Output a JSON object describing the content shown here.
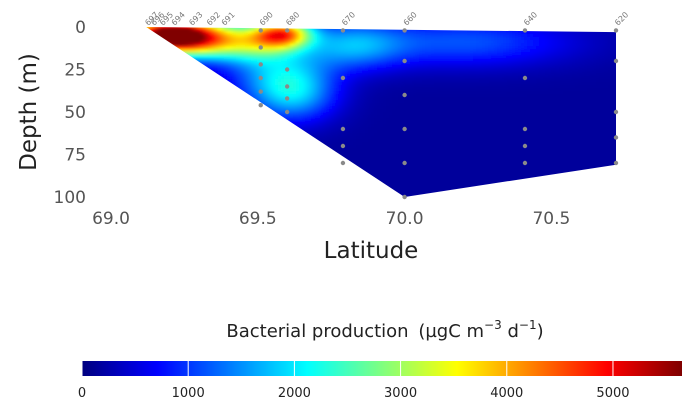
{
  "chart_data": {
    "type": "heatmap",
    "xlabel": "Latitude",
    "ylabel": "Depth (m)",
    "xlim": [
      69.0,
      70.72
    ],
    "ylim": [
      100,
      0
    ],
    "x_ticks": [
      "69.0",
      "69.5",
      "70.0",
      "70.5"
    ],
    "y_ticks": [
      "0",
      "25",
      "50",
      "75",
      "100"
    ],
    "colorbar": {
      "title": "Bacterial production",
      "unit_prefix": "(µgC m",
      "unit_exp1": "−3",
      "unit_mid": " d",
      "unit_exp2": "−1",
      "unit_suffix": ")",
      "range": [
        0,
        5650
      ],
      "ticks": [
        "0",
        "1000",
        "2000",
        "3000",
        "4000",
        "5000"
      ],
      "colormap": "jet"
    },
    "stations": [
      {
        "label": "697",
        "lat": 69.12
      },
      {
        "label": "696",
        "lat": 69.14
      },
      {
        "label": "695",
        "lat": 69.17
      },
      {
        "label": "694",
        "lat": 69.21
      },
      {
        "label": "693",
        "lat": 69.27
      },
      {
        "label": "692",
        "lat": 69.33
      },
      {
        "label": "691",
        "lat": 69.38
      },
      {
        "label": "690",
        "lat": 69.51
      },
      {
        "label": "680",
        "lat": 69.6
      },
      {
        "label": "670",
        "lat": 69.79
      },
      {
        "label": "660",
        "lat": 70.0
      },
      {
        "label": "640",
        "lat": 70.41
      },
      {
        "label": "620",
        "lat": 70.72
      }
    ],
    "sample_points": [
      {
        "lat": 69.51,
        "depth": 2
      },
      {
        "lat": 69.51,
        "depth": 12
      },
      {
        "lat": 69.51,
        "depth": 22
      },
      {
        "lat": 69.51,
        "depth": 30
      },
      {
        "lat": 69.51,
        "depth": 38
      },
      {
        "lat": 69.51,
        "depth": 46
      },
      {
        "lat": 69.6,
        "depth": 2
      },
      {
        "lat": 69.6,
        "depth": 25
      },
      {
        "lat": 69.6,
        "depth": 35
      },
      {
        "lat": 69.6,
        "depth": 42
      },
      {
        "lat": 69.6,
        "depth": 50
      },
      {
        "lat": 69.79,
        "depth": 2
      },
      {
        "lat": 69.79,
        "depth": 30
      },
      {
        "lat": 69.79,
        "depth": 60
      },
      {
        "lat": 69.79,
        "depth": 70
      },
      {
        "lat": 69.79,
        "depth": 80
      },
      {
        "lat": 70.0,
        "depth": 2
      },
      {
        "lat": 70.0,
        "depth": 20
      },
      {
        "lat": 70.0,
        "depth": 40
      },
      {
        "lat": 70.0,
        "depth": 60
      },
      {
        "lat": 70.0,
        "depth": 80
      },
      {
        "lat": 70.0,
        "depth": 100
      },
      {
        "lat": 70.41,
        "depth": 2
      },
      {
        "lat": 70.41,
        "depth": 30
      },
      {
        "lat": 70.41,
        "depth": 60
      },
      {
        "lat": 70.41,
        "depth": 70
      },
      {
        "lat": 70.41,
        "depth": 80
      },
      {
        "lat": 70.72,
        "depth": 2
      },
      {
        "lat": 70.72,
        "depth": 20
      },
      {
        "lat": 70.72,
        "depth": 50
      },
      {
        "lat": 70.72,
        "depth": 65
      },
      {
        "lat": 70.72,
        "depth": 80
      }
    ],
    "section_outline": [
      {
        "lat": 69.12,
        "depth": 0
      },
      {
        "lat": 70.72,
        "depth": 3
      },
      {
        "lat": 70.72,
        "depth": 81
      },
      {
        "lat": 70.0,
        "depth": 100
      }
    ],
    "hotspots": [
      {
        "lat": 69.18,
        "depth": 4,
        "value": 5200,
        "spread_lat": 0.1,
        "spread_depth": 7
      },
      {
        "lat": 69.3,
        "depth": 6,
        "value": 2700,
        "spread_lat": 0.1,
        "spread_depth": 8
      },
      {
        "lat": 69.58,
        "depth": 3,
        "value": 3400,
        "spread_lat": 0.07,
        "spread_depth": 6
      },
      {
        "lat": 69.47,
        "depth": 8,
        "value": 1900,
        "spread_lat": 0.1,
        "spread_depth": 8
      },
      {
        "lat": 69.62,
        "depth": 38,
        "value": 1400,
        "spread_lat": 0.1,
        "spread_depth": 12
      },
      {
        "lat": 69.55,
        "depth": 25,
        "value": 1100,
        "spread_lat": 0.12,
        "spread_depth": 14
      },
      {
        "lat": 69.82,
        "depth": 10,
        "value": 1300,
        "spread_lat": 0.12,
        "spread_depth": 10
      },
      {
        "lat": 70.2,
        "depth": 8,
        "value": 1000,
        "spread_lat": 0.25,
        "spread_depth": 10
      }
    ],
    "background_value": 150
  }
}
